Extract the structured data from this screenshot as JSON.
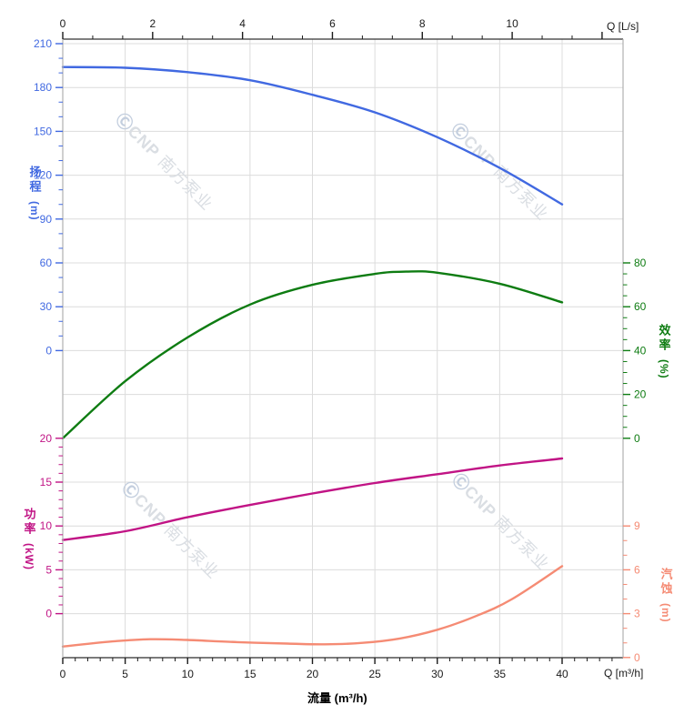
{
  "watermark": {
    "logo_glyph": "Ⓒ",
    "brand": "CNP",
    "cjk": "南方泵业"
  },
  "chart_data": {
    "type": "line",
    "description": "Centrifugal pump performance curves: head, efficiency, power and NPSH versus flow rate",
    "grid": true,
    "x_axes": {
      "top": {
        "label": "Q [L/s]",
        "ticks": [
          0,
          2,
          4,
          6,
          8,
          10
        ],
        "minor_step": 0.6667,
        "range": [
          0,
          12.47
        ]
      },
      "bottom": {
        "label": "Q [m³/h]",
        "title": "流量 (m³/h)",
        "ticks": [
          0,
          5,
          10,
          15,
          20,
          25,
          30,
          35,
          40
        ],
        "minor_step": 1,
        "range": [
          0,
          44.9
        ]
      }
    },
    "y_axes": {
      "head": {
        "title": "扬程",
        "unit": "(m)",
        "color": "#4169E1",
        "ticks": [
          210,
          180,
          150,
          120,
          90,
          60,
          30,
          0
        ],
        "minor_step": 10,
        "range": [
          0,
          210
        ]
      },
      "power": {
        "title": "功率",
        "unit": "(kW)",
        "color": "#C11485",
        "ticks": [
          20,
          15,
          10,
          5,
          0
        ],
        "minor_step": 1,
        "range": [
          0,
          20
        ]
      },
      "efficiency": {
        "title": "效率",
        "unit": "(%)",
        "color": "#0E7C12",
        "ticks": [
          80,
          60,
          40,
          20,
          0
        ],
        "minor_step": 5,
        "range": [
          0,
          80
        ]
      },
      "npsh": {
        "title": "汽蚀",
        "unit": "(m)",
        "color": "#F58B74",
        "ticks": [
          9,
          6,
          3,
          0
        ],
        "minor_step": 1,
        "range": [
          0,
          9
        ]
      }
    },
    "series": [
      {
        "name": "head-curve",
        "axis": "head",
        "color": "#4169E1",
        "points": [
          [
            0,
            194
          ],
          [
            5,
            193.5
          ],
          [
            10,
            190.5
          ],
          [
            15,
            185
          ],
          [
            20,
            175
          ],
          [
            25,
            163
          ],
          [
            30,
            146
          ],
          [
            35,
            125
          ],
          [
            40,
            100
          ]
        ]
      },
      {
        "name": "efficiency-curve",
        "axis": "efficiency",
        "color": "#0E7C12",
        "points": [
          [
            0,
            0
          ],
          [
            5,
            26
          ],
          [
            10,
            46
          ],
          [
            15,
            61
          ],
          [
            20,
            70
          ],
          [
            25,
            75
          ],
          [
            27.5,
            76
          ],
          [
            30,
            75.5
          ],
          [
            35,
            70.5
          ],
          [
            40,
            62
          ]
        ]
      },
      {
        "name": "power-curve",
        "axis": "power",
        "color": "#C11485",
        "points": [
          [
            0,
            8.4
          ],
          [
            5,
            9.4
          ],
          [
            10,
            11.0
          ],
          [
            15,
            12.4
          ],
          [
            20,
            13.7
          ],
          [
            25,
            14.9
          ],
          [
            30,
            15.9
          ],
          [
            35,
            16.9
          ],
          [
            40,
            17.7
          ]
        ]
      },
      {
        "name": "npsh-curve",
        "axis": "npsh",
        "color": "#F58B74",
        "points": [
          [
            0,
            0.75
          ],
          [
            4,
            1.1
          ],
          [
            7,
            1.25
          ],
          [
            10,
            1.2
          ],
          [
            14,
            1.05
          ],
          [
            18,
            0.95
          ],
          [
            21,
            0.9
          ],
          [
            24,
            1.0
          ],
          [
            27,
            1.3
          ],
          [
            30,
            1.9
          ],
          [
            33,
            2.8
          ],
          [
            36,
            4.0
          ],
          [
            40,
            6.25
          ]
        ]
      }
    ]
  }
}
